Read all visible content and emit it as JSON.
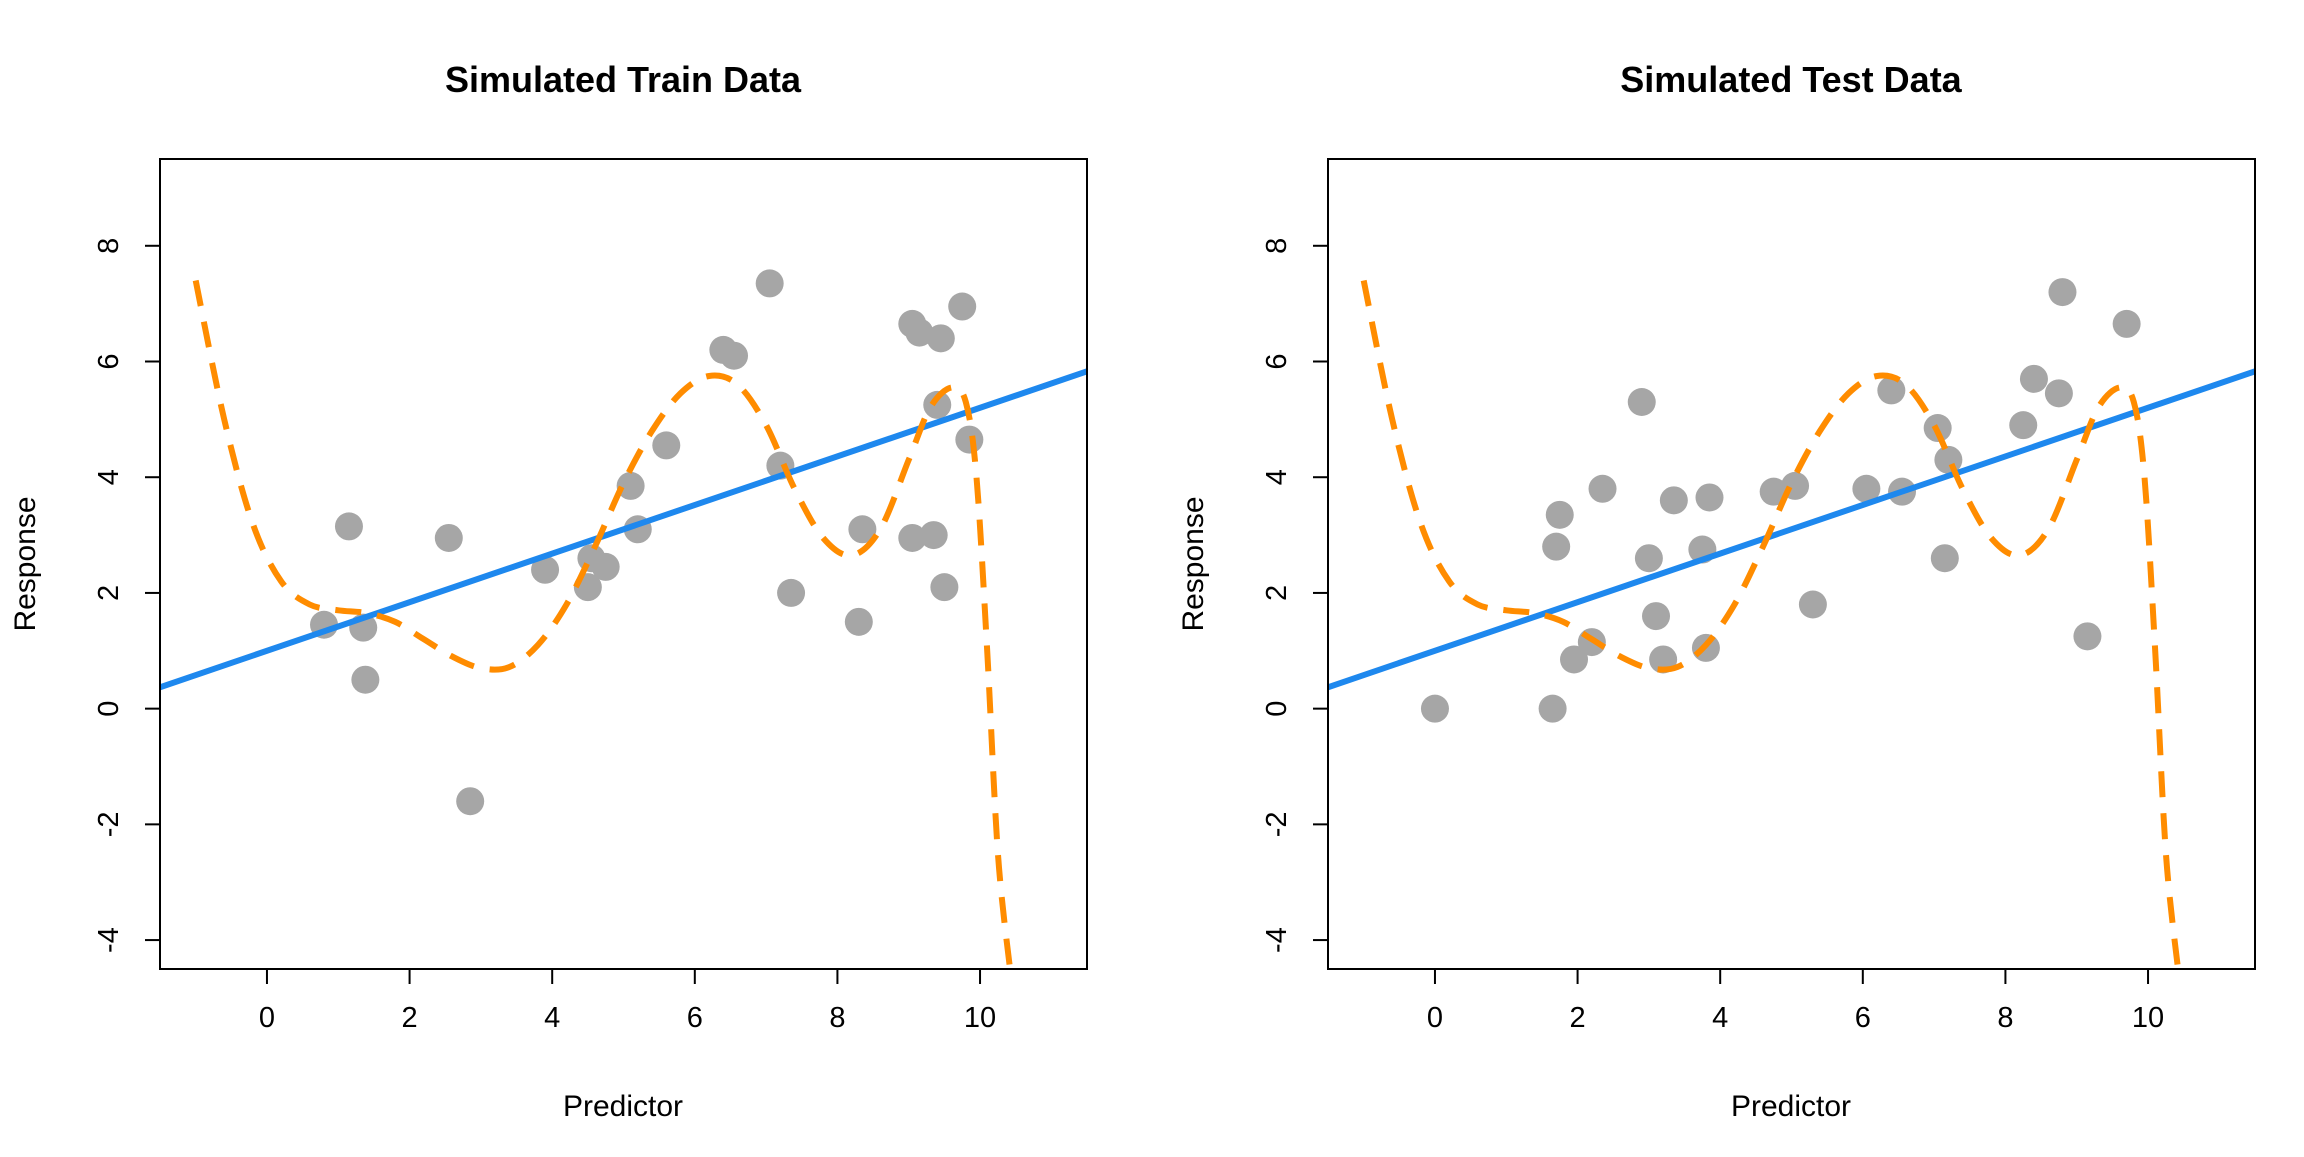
{
  "chart_data": [
    {
      "type": "scatter",
      "title": "Simulated Train Data",
      "xlabel": "Predictor",
      "ylabel": "Response",
      "xlim": [
        -1.5,
        11.5
      ],
      "ylim": [
        -4.5,
        9.5
      ],
      "x_ticks": [
        0,
        2,
        4,
        6,
        8,
        10
      ],
      "y_ticks": [
        -4,
        -2,
        0,
        2,
        4,
        6,
        8
      ],
      "x_tick_labels": [
        "0",
        "2",
        "4",
        "6",
        "8",
        "10"
      ],
      "y_tick_labels": [
        "-4",
        "-2",
        "0",
        "2",
        "4",
        "6",
        "8"
      ],
      "grid": false,
      "points": {
        "color": "#a6a6a6",
        "x": [
          0.8,
          1.15,
          1.35,
          1.38,
          2.55,
          2.85,
          3.9,
          4.5,
          4.55,
          4.75,
          5.1,
          5.2,
          5.6,
          6.4,
          6.55,
          7.05,
          7.2,
          7.35,
          8.3,
          8.35,
          9.05,
          9.05,
          9.15,
          9.35,
          9.4,
          9.45,
          9.5,
          9.75,
          9.85
        ],
        "y": [
          1.45,
          3.15,
          1.4,
          0.5,
          2.95,
          -1.6,
          2.4,
          2.1,
          2.6,
          2.45,
          3.85,
          3.1,
          4.55,
          6.2,
          6.1,
          7.35,
          4.2,
          2.0,
          1.5,
          3.1,
          2.95,
          6.65,
          6.5,
          3.0,
          5.25,
          6.4,
          2.1,
          6.95,
          4.65
        ]
      },
      "linear_fit": {
        "color": "#1e88ee",
        "intercept": 1.0,
        "slope": 0.42
      },
      "flexible_fit": {
        "color": "#ff8c00",
        "style": "dashed",
        "x": [
          -1.0,
          -0.6,
          -0.2,
          0.2,
          0.6,
          1.0,
          1.4,
          1.8,
          2.2,
          2.6,
          3.0,
          3.4,
          3.8,
          4.2,
          4.6,
          5.0,
          5.4,
          5.8,
          6.2,
          6.6,
          7.0,
          7.4,
          7.8,
          8.2,
          8.6,
          9.0,
          9.3,
          9.6,
          9.8,
          9.95,
          10.1,
          10.25,
          10.42
        ],
        "y": [
          7.4,
          5.0,
          3.2,
          2.2,
          1.8,
          1.7,
          1.65,
          1.5,
          1.2,
          0.9,
          0.7,
          0.72,
          1.1,
          1.8,
          2.8,
          3.9,
          4.8,
          5.45,
          5.75,
          5.6,
          4.9,
          3.8,
          2.95,
          2.65,
          3.1,
          4.3,
          5.2,
          5.55,
          5.3,
          4.0,
          1.0,
          -2.5,
          -4.5
        ]
      }
    },
    {
      "type": "scatter",
      "title": "Simulated Test Data",
      "xlabel": "Predictor",
      "ylabel": "Response",
      "xlim": [
        -1.5,
        11.5
      ],
      "ylim": [
        -4.5,
        9.5
      ],
      "x_ticks": [
        0,
        2,
        4,
        6,
        8,
        10
      ],
      "y_ticks": [
        -4,
        -2,
        0,
        2,
        4,
        6,
        8
      ],
      "x_tick_labels": [
        "0",
        "2",
        "4",
        "6",
        "8",
        "10"
      ],
      "y_tick_labels": [
        "-4",
        "-2",
        "0",
        "2",
        "4",
        "6",
        "8"
      ],
      "grid": false,
      "points": {
        "color": "#a6a6a6",
        "x": [
          0.0,
          1.65,
          1.7,
          1.75,
          1.95,
          2.2,
          2.35,
          2.9,
          3.0,
          3.1,
          3.2,
          3.35,
          3.75,
          3.8,
          3.85,
          4.75,
          5.05,
          5.3,
          6.05,
          6.4,
          6.55,
          7.05,
          7.15,
          7.2,
          8.25,
          8.4,
          8.75,
          8.8,
          9.15,
          9.7
        ],
        "y": [
          0.0,
          0.0,
          2.8,
          3.35,
          0.85,
          1.15,
          3.8,
          5.3,
          2.6,
          1.6,
          0.85,
          3.6,
          2.75,
          1.05,
          3.65,
          3.75,
          3.85,
          1.8,
          3.8,
          5.5,
          3.75,
          4.85,
          2.6,
          4.3,
          4.9,
          5.7,
          5.45,
          7.2,
          1.25,
          6.65
        ]
      },
      "linear_fit": {
        "color": "#1e88ee",
        "intercept": 1.0,
        "slope": 0.42
      },
      "flexible_fit": {
        "color": "#ff8c00",
        "style": "dashed",
        "x": [
          -1.0,
          -0.6,
          -0.2,
          0.2,
          0.6,
          1.0,
          1.4,
          1.8,
          2.2,
          2.6,
          3.0,
          3.4,
          3.8,
          4.2,
          4.6,
          5.0,
          5.4,
          5.8,
          6.2,
          6.6,
          7.0,
          7.4,
          7.8,
          8.2,
          8.6,
          9.0,
          9.3,
          9.6,
          9.8,
          9.95,
          10.1,
          10.25,
          10.42
        ],
        "y": [
          7.4,
          5.0,
          3.2,
          2.2,
          1.8,
          1.7,
          1.65,
          1.5,
          1.2,
          0.9,
          0.7,
          0.72,
          1.1,
          1.8,
          2.8,
          3.9,
          4.8,
          5.45,
          5.75,
          5.6,
          4.9,
          3.8,
          2.95,
          2.65,
          3.1,
          4.3,
          5.2,
          5.55,
          5.3,
          4.0,
          1.0,
          -2.5,
          -4.5
        ]
      }
    }
  ]
}
